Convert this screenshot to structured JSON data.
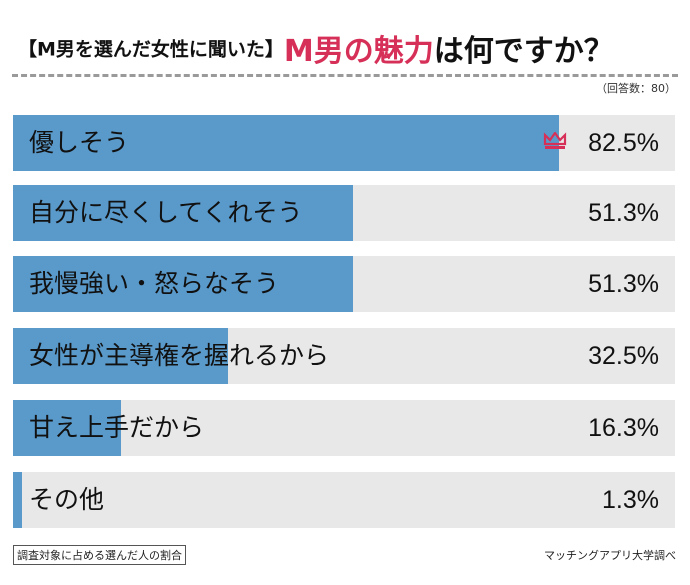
{
  "title": {
    "prefix": "【M男を選んだ女性に聞いた】",
    "highlight": "M男の魅力",
    "suffix": "は何ですか？"
  },
  "respondents": "（回答数：80）",
  "footnote": "調査対象に占める選んだ人の割合",
  "source": "マッチングアプリ大学調べ",
  "colors": {
    "bar": "#5a9acb",
    "track": "#e8e8e8",
    "accent": "#d63058"
  },
  "chart_data": {
    "type": "bar",
    "orientation": "horizontal",
    "xlim": [
      0,
      100
    ],
    "top_marker_icon": "crown-icon",
    "categories": [
      "優しそう",
      "自分に尽くしてくれそう",
      "我慢強い・怒らなそう",
      "女性が主導権を握れるから",
      "甘え上手だから",
      "その他"
    ],
    "values": [
      82.5,
      51.3,
      51.3,
      32.5,
      16.3,
      1.3
    ],
    "value_labels": [
      "82.5%",
      "51.3%",
      "51.3%",
      "32.5%",
      "16.3%",
      "1.3%"
    ]
  }
}
